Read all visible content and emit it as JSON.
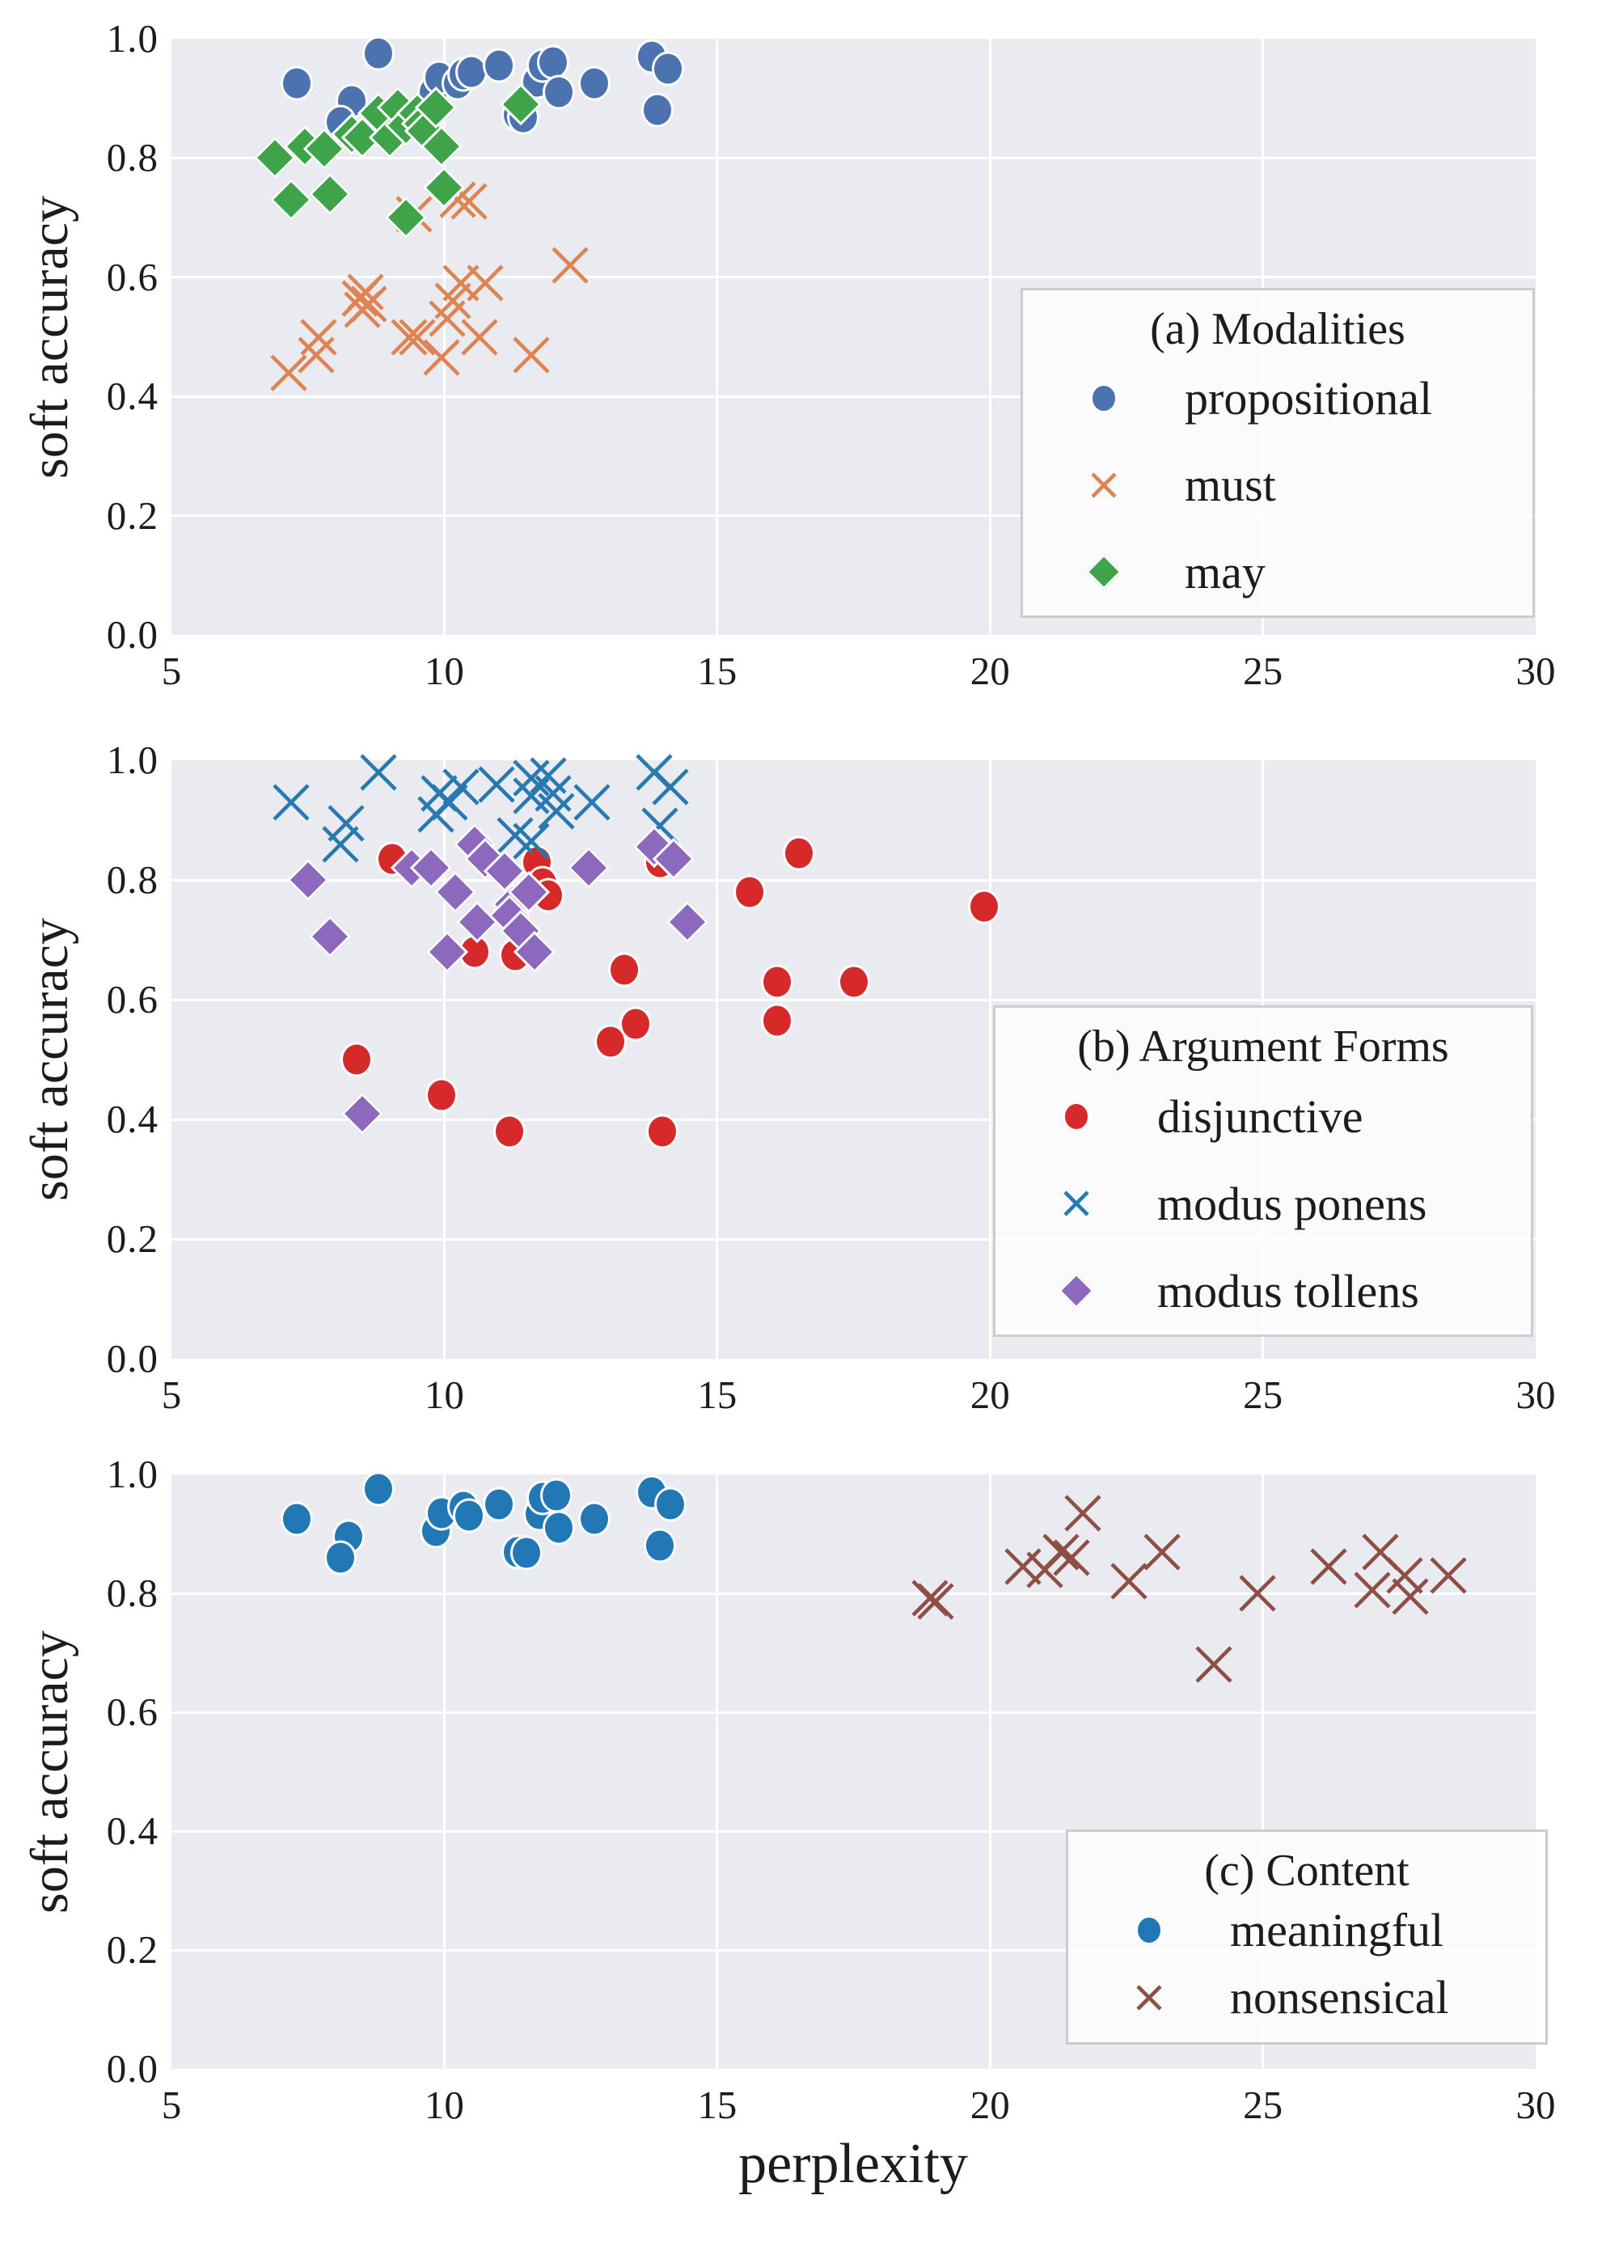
{
  "figure": {
    "xlabel": "perplexity",
    "ylabel": "soft accuracy",
    "x_ticks": [
      5,
      10,
      15,
      20,
      25,
      30
    ],
    "y_ticks": [
      "0.0",
      "0.2",
      "0.4",
      "0.6",
      "0.8",
      "1.0"
    ],
    "xlim": [
      5,
      30
    ],
    "ylim": [
      0.0,
      1.0
    ],
    "background_color": "#ffffff",
    "panel_background_color": "#eaeaf1",
    "grid_color": "#ffffff",
    "grid": "on",
    "legend_background_color": "#f5f5f8",
    "legend_border_color": "#cccccc"
  },
  "chart_data": [
    {
      "type": "scatter",
      "title": "(a) Modalities",
      "xlabel": "",
      "ylabel": "soft accuracy",
      "xlim": [
        5,
        30
      ],
      "ylim": [
        0.0,
        1.0
      ],
      "grid": "on",
      "legend_position": "center right inside",
      "series": [
        {
          "name": "propositional",
          "marker": "circle",
          "color": "#4c72b0",
          "points": [
            [
              7.3,
              0.925
            ],
            [
              8.3,
              0.895
            ],
            [
              8.1,
              0.86
            ],
            [
              8.8,
              0.975
            ],
            [
              9.8,
              0.91
            ],
            [
              9.9,
              0.935
            ],
            [
              10.25,
              0.925
            ],
            [
              10.35,
              0.94
            ],
            [
              10.5,
              0.945
            ],
            [
              11.0,
              0.955
            ],
            [
              11.35,
              0.873
            ],
            [
              11.45,
              0.868
            ],
            [
              11.7,
              0.928
            ],
            [
              11.8,
              0.955
            ],
            [
              12.0,
              0.96
            ],
            [
              12.1,
              0.91
            ],
            [
              12.75,
              0.925
            ],
            [
              13.8,
              0.97
            ],
            [
              14.1,
              0.95
            ],
            [
              13.9,
              0.88
            ]
          ]
        },
        {
          "name": "must",
          "marker": "x",
          "color": "#dd8452",
          "points": [
            [
              7.15,
              0.44
            ],
            [
              7.65,
              0.47
            ],
            [
              7.7,
              0.5
            ],
            [
              8.45,
              0.565
            ],
            [
              8.55,
              0.575
            ],
            [
              8.62,
              0.555
            ],
            [
              8.5,
              0.545
            ],
            [
              9.35,
              0.5
            ],
            [
              9.5,
              0.5
            ],
            [
              9.45,
              0.705
            ],
            [
              9.95,
              0.465
            ],
            [
              10.05,
              0.53
            ],
            [
              10.15,
              0.56
            ],
            [
              10.3,
              0.59
            ],
            [
              10.75,
              0.59
            ],
            [
              10.25,
              0.73
            ],
            [
              10.45,
              0.727
            ],
            [
              10.65,
              0.5
            ],
            [
              11.6,
              0.47
            ],
            [
              12.3,
              0.62
            ]
          ]
        },
        {
          "name": "may",
          "marker": "diamond",
          "color": "#3fa34a",
          "points": [
            [
              6.9,
              0.8
            ],
            [
              7.2,
              0.73
            ],
            [
              7.45,
              0.82
            ],
            [
              7.8,
              0.815
            ],
            [
              7.9,
              0.74
            ],
            [
              8.3,
              0.84
            ],
            [
              8.5,
              0.835
            ],
            [
              8.8,
              0.875
            ],
            [
              9.0,
              0.835
            ],
            [
              9.15,
              0.885
            ],
            [
              9.3,
              0.855
            ],
            [
              9.3,
              0.7
            ],
            [
              9.5,
              0.875
            ],
            [
              9.6,
              0.858
            ],
            [
              9.65,
              0.845
            ],
            [
              9.85,
              0.885
            ],
            [
              9.95,
              0.82
            ],
            [
              10.0,
              0.75
            ],
            [
              11.4,
              0.89
            ]
          ]
        }
      ]
    },
    {
      "type": "scatter",
      "title": "(b) Argument Forms",
      "xlabel": "",
      "ylabel": "soft accuracy",
      "xlim": [
        5,
        30
      ],
      "ylim": [
        0.0,
        1.0
      ],
      "grid": "on",
      "legend_position": "lower right inside",
      "series": [
        {
          "name": "disjunctive",
          "marker": "circle",
          "color": "#d62a2a",
          "points": [
            [
              9.05,
              0.835
            ],
            [
              11.7,
              0.83
            ],
            [
              11.8,
              0.795
            ],
            [
              11.9,
              0.775
            ],
            [
              13.95,
              0.83
            ],
            [
              10.55,
              0.68
            ],
            [
              11.3,
              0.675
            ],
            [
              13.3,
              0.65
            ],
            [
              13.5,
              0.56
            ],
            [
              13.05,
              0.53
            ],
            [
              8.4,
              0.5
            ],
            [
              9.95,
              0.44
            ],
            [
              11.2,
              0.38
            ],
            [
              14.0,
              0.38
            ],
            [
              16.5,
              0.845
            ],
            [
              15.6,
              0.78
            ],
            [
              19.9,
              0.755
            ],
            [
              16.1,
              0.63
            ],
            [
              17.5,
              0.63
            ],
            [
              16.1,
              0.565
            ]
          ]
        },
        {
          "name": "modus ponens",
          "marker": "x",
          "color": "#2779b2",
          "points": [
            [
              8.8,
              0.98
            ],
            [
              7.2,
              0.93
            ],
            [
              8.2,
              0.895
            ],
            [
              8.1,
              0.86
            ],
            [
              9.9,
              0.945
            ],
            [
              10.3,
              0.955
            ],
            [
              10.1,
              0.93
            ],
            [
              9.85,
              0.91
            ],
            [
              10.95,
              0.96
            ],
            [
              11.6,
              0.97
            ],
            [
              11.9,
              0.975
            ],
            [
              11.6,
              0.94
            ],
            [
              12.0,
              0.945
            ],
            [
              12.05,
              0.915
            ],
            [
              12.7,
              0.93
            ],
            [
              11.3,
              0.875
            ],
            [
              11.6,
              0.865
            ],
            [
              13.85,
              0.98
            ],
            [
              14.15,
              0.955
            ],
            [
              13.95,
              0.89
            ]
          ]
        },
        {
          "name": "modus tollens",
          "marker": "diamond",
          "color": "#8d69bd",
          "points": [
            [
              7.5,
              0.8
            ],
            [
              7.9,
              0.705
            ],
            [
              8.5,
              0.41
            ],
            [
              9.4,
              0.82
            ],
            [
              9.75,
              0.82
            ],
            [
              10.55,
              0.86
            ],
            [
              10.75,
              0.835
            ],
            [
              11.1,
              0.815
            ],
            [
              10.2,
              0.78
            ],
            [
              11.25,
              0.76
            ],
            [
              11.55,
              0.78
            ],
            [
              11.2,
              0.74
            ],
            [
              10.6,
              0.73
            ],
            [
              11.4,
              0.715
            ],
            [
              11.65,
              0.68
            ],
            [
              10.05,
              0.68
            ],
            [
              12.65,
              0.82
            ],
            [
              13.85,
              0.855
            ],
            [
              14.2,
              0.835
            ],
            [
              14.45,
              0.73
            ]
          ]
        }
      ]
    },
    {
      "type": "scatter",
      "title": "(c) Content",
      "xlabel": "perplexity",
      "ylabel": "soft accuracy",
      "xlim": [
        5,
        30
      ],
      "ylim": [
        0.0,
        1.0
      ],
      "grid": "on",
      "legend_position": "lower right inside",
      "series": [
        {
          "name": "meaningful",
          "marker": "circle",
          "color": "#2278b5",
          "points": [
            [
              7.3,
              0.925
            ],
            [
              8.25,
              0.895
            ],
            [
              8.1,
              0.86
            ],
            [
              8.8,
              0.975
            ],
            [
              9.85,
              0.905
            ],
            [
              9.95,
              0.935
            ],
            [
              10.35,
              0.945
            ],
            [
              10.45,
              0.93
            ],
            [
              11.0,
              0.95
            ],
            [
              11.35,
              0.87
            ],
            [
              11.5,
              0.868
            ],
            [
              11.75,
              0.933
            ],
            [
              11.8,
              0.96
            ],
            [
              12.05,
              0.965
            ],
            [
              12.1,
              0.91
            ],
            [
              12.75,
              0.925
            ],
            [
              13.8,
              0.97
            ],
            [
              14.15,
              0.95
            ],
            [
              13.95,
              0.88
            ]
          ]
        },
        {
          "name": "nonsensical",
          "marker": "x",
          "color": "#8f4e44",
          "points": [
            [
              18.9,
              0.792
            ],
            [
              19.0,
              0.786
            ],
            [
              20.6,
              0.845
            ],
            [
              21.0,
              0.84
            ],
            [
              21.3,
              0.87
            ],
            [
              21.5,
              0.86
            ],
            [
              21.7,
              0.935
            ],
            [
              22.55,
              0.82
            ],
            [
              23.15,
              0.87
            ],
            [
              24.1,
              0.68
            ],
            [
              24.9,
              0.8
            ],
            [
              26.2,
              0.845
            ],
            [
              27.15,
              0.87
            ],
            [
              27.0,
              0.805
            ],
            [
              27.6,
              0.83
            ],
            [
              27.7,
              0.795
            ],
            [
              28.4,
              0.83
            ]
          ]
        }
      ]
    }
  ]
}
